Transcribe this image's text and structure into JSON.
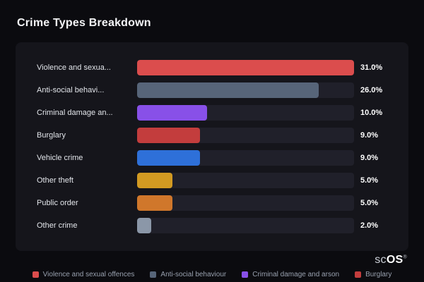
{
  "title": "Crime Types Breakdown",
  "chart_data": {
    "type": "bar",
    "orientation": "horizontal",
    "title": "Crime Types Breakdown",
    "categories": [
      "Violence and sexua...",
      "Anti-social behavi...",
      "Criminal damage an...",
      "Burglary",
      "Vehicle crime",
      "Other theft",
      "Public order",
      "Other crime"
    ],
    "values": [
      31.0,
      26.0,
      10.0,
      9.0,
      9.0,
      5.0,
      5.0,
      2.0
    ],
    "value_labels": [
      "31.0%",
      "26.0%",
      "10.0%",
      "9.0%",
      "9.0%",
      "5.0%",
      "5.0%",
      "2.0%"
    ],
    "colors": [
      "#db4d4d",
      "#576579",
      "#8850e8",
      "#c33d3d",
      "#2e70d9",
      "#d29a22",
      "#d0772b",
      "#8b97a8"
    ],
    "xlim": [
      0,
      31
    ],
    "grid": false,
    "legend_position": "bottom"
  },
  "legend": [
    {
      "label": "Violence and sexual offences",
      "color": "#db4d4d"
    },
    {
      "label": "Anti-social behaviour",
      "color": "#576579"
    },
    {
      "label": "Criminal damage and arson",
      "color": "#8850e8"
    },
    {
      "label": "Burglary",
      "color": "#c33d3d"
    }
  ],
  "branding": {
    "prefix": "sc",
    "suffix": "OS",
    "registered": "®"
  }
}
